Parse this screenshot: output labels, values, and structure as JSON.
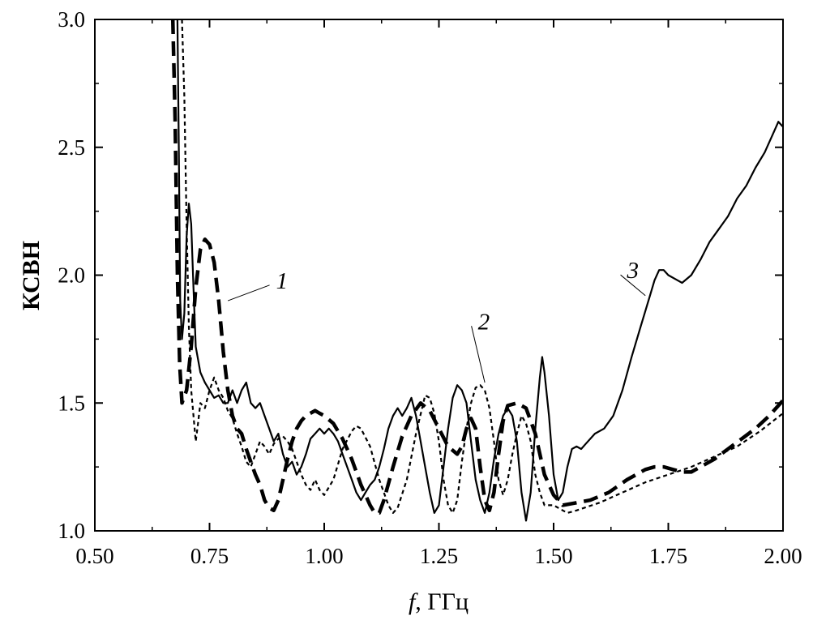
{
  "chart_data": {
    "type": "line",
    "title": "",
    "xlabel": {
      "var": "f",
      "unit": ", ГГц"
    },
    "ylabel": "КСВН",
    "xlim": [
      0.5,
      2.0
    ],
    "ylim": [
      1.0,
      3.0
    ],
    "xticks": [
      "0.50",
      "0.75",
      "1.00",
      "1.25",
      "1.50",
      "1.75",
      "2.00"
    ],
    "yticks": [
      "1.0",
      "1.5",
      "2.0",
      "2.5",
      "3.0"
    ],
    "grid": false,
    "series": [
      {
        "name": "1",
        "style": "long-dash",
        "points": [
          [
            0.67,
            3.0
          ],
          [
            0.675,
            2.6
          ],
          [
            0.68,
            2.0
          ],
          [
            0.685,
            1.65
          ],
          [
            0.69,
            1.5
          ],
          [
            0.7,
            1.55
          ],
          [
            0.71,
            1.72
          ],
          [
            0.72,
            1.95
          ],
          [
            0.73,
            2.1
          ],
          [
            0.74,
            2.14
          ],
          [
            0.75,
            2.12
          ],
          [
            0.76,
            2.05
          ],
          [
            0.77,
            1.9
          ],
          [
            0.78,
            1.7
          ],
          [
            0.79,
            1.55
          ],
          [
            0.8,
            1.45
          ],
          [
            0.81,
            1.4
          ],
          [
            0.82,
            1.38
          ],
          [
            0.83,
            1.32
          ],
          [
            0.84,
            1.27
          ],
          [
            0.85,
            1.22
          ],
          [
            0.86,
            1.18
          ],
          [
            0.87,
            1.12
          ],
          [
            0.88,
            1.09
          ],
          [
            0.89,
            1.08
          ],
          [
            0.9,
            1.12
          ],
          [
            0.91,
            1.2
          ],
          [
            0.92,
            1.28
          ],
          [
            0.93,
            1.35
          ],
          [
            0.94,
            1.4
          ],
          [
            0.95,
            1.43
          ],
          [
            0.96,
            1.45
          ],
          [
            0.97,
            1.46
          ],
          [
            0.98,
            1.47
          ],
          [
            0.99,
            1.46
          ],
          [
            1.0,
            1.45
          ],
          [
            1.02,
            1.42
          ],
          [
            1.04,
            1.36
          ],
          [
            1.06,
            1.28
          ],
          [
            1.08,
            1.18
          ],
          [
            1.1,
            1.1
          ],
          [
            1.11,
            1.07
          ],
          [
            1.12,
            1.07
          ],
          [
            1.13,
            1.12
          ],
          [
            1.15,
            1.25
          ],
          [
            1.17,
            1.37
          ],
          [
            1.19,
            1.45
          ],
          [
            1.21,
            1.5
          ],
          [
            1.23,
            1.47
          ],
          [
            1.25,
            1.4
          ],
          [
            1.27,
            1.33
          ],
          [
            1.29,
            1.3
          ],
          [
            1.3,
            1.33
          ],
          [
            1.31,
            1.4
          ],
          [
            1.32,
            1.44
          ],
          [
            1.33,
            1.4
          ],
          [
            1.34,
            1.25
          ],
          [
            1.35,
            1.12
          ],
          [
            1.36,
            1.08
          ],
          [
            1.37,
            1.15
          ],
          [
            1.38,
            1.3
          ],
          [
            1.39,
            1.43
          ],
          [
            1.4,
            1.49
          ],
          [
            1.42,
            1.5
          ],
          [
            1.44,
            1.48
          ],
          [
            1.46,
            1.38
          ],
          [
            1.48,
            1.22
          ],
          [
            1.5,
            1.14
          ],
          [
            1.52,
            1.1
          ],
          [
            1.55,
            1.11
          ],
          [
            1.58,
            1.12
          ],
          [
            1.62,
            1.15
          ],
          [
            1.66,
            1.2
          ],
          [
            1.7,
            1.24
          ],
          [
            1.72,
            1.25
          ],
          [
            1.74,
            1.25
          ],
          [
            1.76,
            1.24
          ],
          [
            1.78,
            1.23
          ],
          [
            1.8,
            1.23
          ],
          [
            1.82,
            1.25
          ],
          [
            1.85,
            1.28
          ],
          [
            1.88,
            1.32
          ],
          [
            1.91,
            1.36
          ],
          [
            1.94,
            1.4
          ],
          [
            1.97,
            1.45
          ],
          [
            2.0,
            1.51
          ]
        ]
      },
      {
        "name": "2",
        "style": "short-dash",
        "points": [
          [
            0.69,
            3.0
          ],
          [
            0.695,
            2.7
          ],
          [
            0.7,
            2.2
          ],
          [
            0.705,
            1.8
          ],
          [
            0.71,
            1.55
          ],
          [
            0.715,
            1.45
          ],
          [
            0.72,
            1.35
          ],
          [
            0.725,
            1.42
          ],
          [
            0.73,
            1.5
          ],
          [
            0.74,
            1.48
          ],
          [
            0.75,
            1.55
          ],
          [
            0.76,
            1.6
          ],
          [
            0.77,
            1.55
          ],
          [
            0.78,
            1.52
          ],
          [
            0.79,
            1.47
          ],
          [
            0.8,
            1.44
          ],
          [
            0.81,
            1.38
          ],
          [
            0.82,
            1.33
          ],
          [
            0.83,
            1.27
          ],
          [
            0.84,
            1.25
          ],
          [
            0.85,
            1.3
          ],
          [
            0.86,
            1.35
          ],
          [
            0.87,
            1.33
          ],
          [
            0.88,
            1.3
          ],
          [
            0.89,
            1.34
          ],
          [
            0.9,
            1.36
          ],
          [
            0.91,
            1.37
          ],
          [
            0.92,
            1.35
          ],
          [
            0.93,
            1.32
          ],
          [
            0.94,
            1.27
          ],
          [
            0.95,
            1.22
          ],
          [
            0.96,
            1.18
          ],
          [
            0.97,
            1.16
          ],
          [
            0.98,
            1.2
          ],
          [
            0.99,
            1.16
          ],
          [
            1.0,
            1.14
          ],
          [
            1.02,
            1.2
          ],
          [
            1.04,
            1.32
          ],
          [
            1.06,
            1.39
          ],
          [
            1.07,
            1.41
          ],
          [
            1.08,
            1.4
          ],
          [
            1.1,
            1.33
          ],
          [
            1.12,
            1.2
          ],
          [
            1.14,
            1.1
          ],
          [
            1.15,
            1.07
          ],
          [
            1.16,
            1.09
          ],
          [
            1.18,
            1.2
          ],
          [
            1.2,
            1.38
          ],
          [
            1.22,
            1.53
          ],
          [
            1.23,
            1.52
          ],
          [
            1.24,
            1.46
          ],
          [
            1.25,
            1.35
          ],
          [
            1.26,
            1.2
          ],
          [
            1.27,
            1.1
          ],
          [
            1.28,
            1.07
          ],
          [
            1.29,
            1.12
          ],
          [
            1.3,
            1.27
          ],
          [
            1.31,
            1.4
          ],
          [
            1.32,
            1.5
          ],
          [
            1.33,
            1.56
          ],
          [
            1.34,
            1.57
          ],
          [
            1.35,
            1.55
          ],
          [
            1.36,
            1.48
          ],
          [
            1.37,
            1.35
          ],
          [
            1.38,
            1.2
          ],
          [
            1.39,
            1.14
          ],
          [
            1.4,
            1.2
          ],
          [
            1.41,
            1.3
          ],
          [
            1.42,
            1.38
          ],
          [
            1.43,
            1.45
          ],
          [
            1.44,
            1.42
          ],
          [
            1.45,
            1.35
          ],
          [
            1.46,
            1.22
          ],
          [
            1.47,
            1.15
          ],
          [
            1.48,
            1.1
          ],
          [
            1.5,
            1.1
          ],
          [
            1.52,
            1.08
          ],
          [
            1.53,
            1.07
          ],
          [
            1.55,
            1.08
          ],
          [
            1.6,
            1.11
          ],
          [
            1.65,
            1.15
          ],
          [
            1.7,
            1.19
          ],
          [
            1.75,
            1.22
          ],
          [
            1.8,
            1.25
          ],
          [
            1.85,
            1.29
          ],
          [
            1.9,
            1.33
          ],
          [
            1.95,
            1.39
          ],
          [
            2.0,
            1.46
          ]
        ]
      },
      {
        "name": "3",
        "style": "solid",
        "points": [
          [
            0.68,
            3.0
          ],
          [
            0.683,
            2.5
          ],
          [
            0.686,
            1.9
          ],
          [
            0.69,
            1.75
          ],
          [
            0.695,
            1.85
          ],
          [
            0.7,
            2.15
          ],
          [
            0.705,
            2.28
          ],
          [
            0.71,
            2.2
          ],
          [
            0.715,
            1.95
          ],
          [
            0.72,
            1.72
          ],
          [
            0.73,
            1.62
          ],
          [
            0.74,
            1.58
          ],
          [
            0.75,
            1.55
          ],
          [
            0.76,
            1.52
          ],
          [
            0.77,
            1.53
          ],
          [
            0.78,
            1.5
          ],
          [
            0.79,
            1.5
          ],
          [
            0.8,
            1.55
          ],
          [
            0.81,
            1.5
          ],
          [
            0.82,
            1.55
          ],
          [
            0.83,
            1.58
          ],
          [
            0.84,
            1.5
          ],
          [
            0.85,
            1.48
          ],
          [
            0.86,
            1.5
          ],
          [
            0.87,
            1.45
          ],
          [
            0.88,
            1.4
          ],
          [
            0.89,
            1.35
          ],
          [
            0.9,
            1.38
          ],
          [
            0.91,
            1.3
          ],
          [
            0.92,
            1.25
          ],
          [
            0.93,
            1.27
          ],
          [
            0.94,
            1.22
          ],
          [
            0.95,
            1.25
          ],
          [
            0.96,
            1.3
          ],
          [
            0.97,
            1.36
          ],
          [
            0.98,
            1.38
          ],
          [
            0.99,
            1.4
          ],
          [
            1.0,
            1.38
          ],
          [
            1.01,
            1.4
          ],
          [
            1.02,
            1.38
          ],
          [
            1.03,
            1.35
          ],
          [
            1.04,
            1.3
          ],
          [
            1.05,
            1.25
          ],
          [
            1.06,
            1.2
          ],
          [
            1.07,
            1.15
          ],
          [
            1.08,
            1.12
          ],
          [
            1.09,
            1.15
          ],
          [
            1.1,
            1.18
          ],
          [
            1.11,
            1.2
          ],
          [
            1.12,
            1.25
          ],
          [
            1.13,
            1.32
          ],
          [
            1.14,
            1.4
          ],
          [
            1.15,
            1.45
          ],
          [
            1.16,
            1.48
          ],
          [
            1.17,
            1.45
          ],
          [
            1.18,
            1.48
          ],
          [
            1.19,
            1.52
          ],
          [
            1.2,
            1.45
          ],
          [
            1.21,
            1.35
          ],
          [
            1.22,
            1.25
          ],
          [
            1.23,
            1.15
          ],
          [
            1.24,
            1.07
          ],
          [
            1.25,
            1.1
          ],
          [
            1.26,
            1.25
          ],
          [
            1.27,
            1.4
          ],
          [
            1.28,
            1.52
          ],
          [
            1.29,
            1.57
          ],
          [
            1.3,
            1.55
          ],
          [
            1.31,
            1.5
          ],
          [
            1.32,
            1.35
          ],
          [
            1.33,
            1.2
          ],
          [
            1.34,
            1.12
          ],
          [
            1.35,
            1.07
          ],
          [
            1.36,
            1.15
          ],
          [
            1.37,
            1.28
          ],
          [
            1.38,
            1.38
          ],
          [
            1.39,
            1.45
          ],
          [
            1.4,
            1.48
          ],
          [
            1.41,
            1.45
          ],
          [
            1.42,
            1.35
          ],
          [
            1.43,
            1.15
          ],
          [
            1.44,
            1.04
          ],
          [
            1.45,
            1.15
          ],
          [
            1.46,
            1.4
          ],
          [
            1.47,
            1.6
          ],
          [
            1.475,
            1.68
          ],
          [
            1.48,
            1.62
          ],
          [
            1.49,
            1.45
          ],
          [
            1.5,
            1.22
          ],
          [
            1.51,
            1.12
          ],
          [
            1.52,
            1.15
          ],
          [
            1.53,
            1.25
          ],
          [
            1.54,
            1.32
          ],
          [
            1.55,
            1.33
          ],
          [
            1.56,
            1.32
          ],
          [
            1.57,
            1.34
          ],
          [
            1.59,
            1.38
          ],
          [
            1.61,
            1.4
          ],
          [
            1.63,
            1.45
          ],
          [
            1.65,
            1.55
          ],
          [
            1.67,
            1.68
          ],
          [
            1.69,
            1.8
          ],
          [
            1.71,
            1.92
          ],
          [
            1.72,
            1.98
          ],
          [
            1.73,
            2.02
          ],
          [
            1.74,
            2.02
          ],
          [
            1.75,
            2.0
          ],
          [
            1.77,
            1.98
          ],
          [
            1.78,
            1.97
          ],
          [
            1.8,
            2.0
          ],
          [
            1.82,
            2.06
          ],
          [
            1.84,
            2.13
          ],
          [
            1.86,
            2.18
          ],
          [
            1.88,
            2.23
          ],
          [
            1.9,
            2.3
          ],
          [
            1.92,
            2.35
          ],
          [
            1.94,
            2.42
          ],
          [
            1.96,
            2.48
          ],
          [
            1.98,
            2.56
          ],
          [
            1.99,
            2.6
          ],
          [
            2.0,
            2.58
          ]
        ]
      }
    ],
    "annotations": [
      {
        "text": "1",
        "at": [
          0.895,
          1.98
        ],
        "target": [
          0.79,
          1.9
        ]
      },
      {
        "text": "2",
        "at": [
          1.335,
          1.82
        ],
        "target": [
          1.35,
          1.58
        ]
      },
      {
        "text": "3",
        "at": [
          1.66,
          2.02
        ],
        "target": [
          1.7,
          1.92
        ]
      }
    ]
  }
}
